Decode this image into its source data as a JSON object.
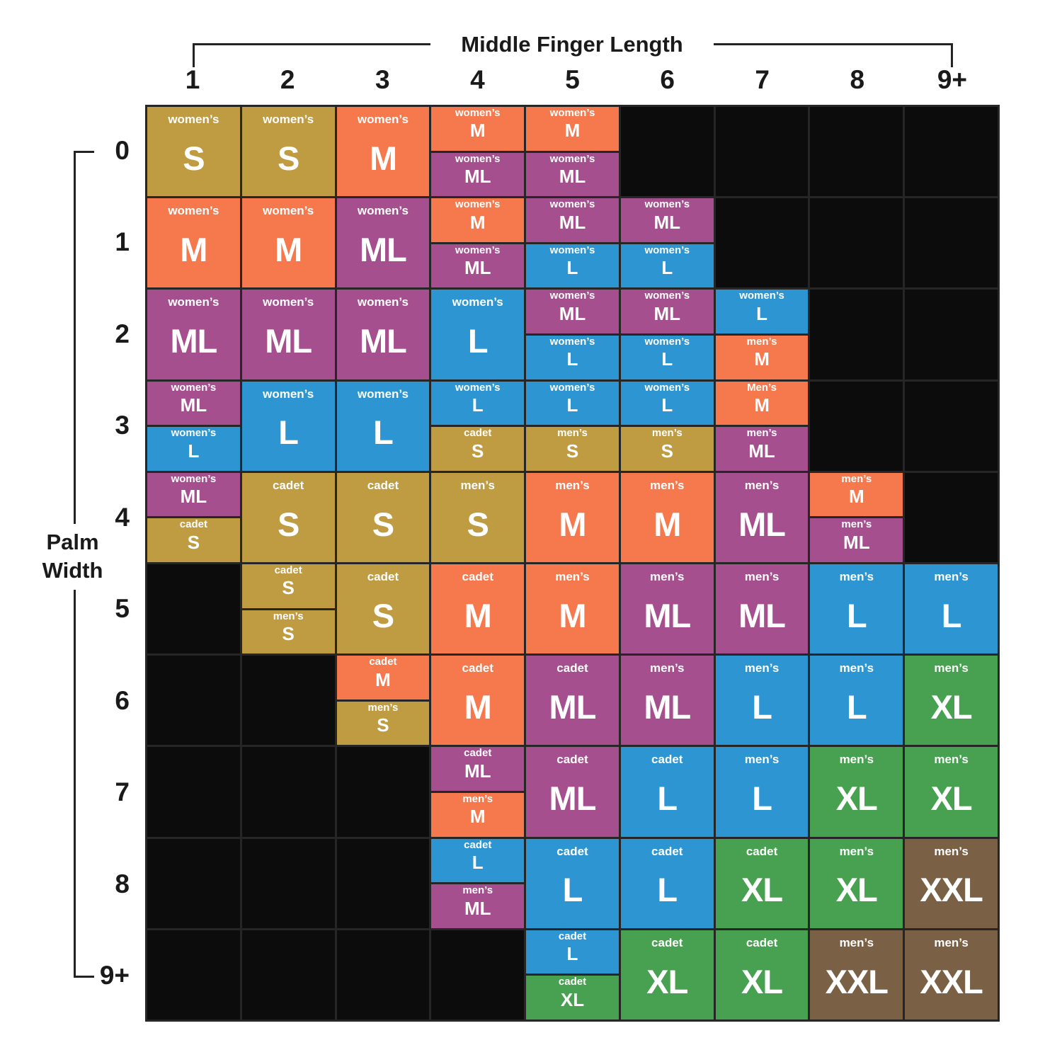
{
  "chart_data": {
    "type": "heatmap",
    "xlabel": "Middle Finger Length",
    "ylabel": "Palm Width",
    "x_ticks": [
      "1",
      "2",
      "3",
      "4",
      "5",
      "6",
      "7",
      "8",
      "9+"
    ],
    "y_ticks": [
      "0",
      "1",
      "2",
      "3",
      "4",
      "5",
      "6",
      "7",
      "8",
      "9+"
    ],
    "legend_position": "none",
    "grid": "on",
    "palette": {
      "S": "#bf9b42",
      "M": "#f5794d",
      "ML": "#a54f8e",
      "L": "#2e95d3",
      "XL": "#48a150",
      "XXL": "#7a6045",
      "empty": "#0c0c0c",
      "gridline": "#262626"
    },
    "rows": [
      {
        "palm_width": "0",
        "cells": [
          {
            "category": "women’s",
            "size": "S"
          },
          {
            "category": "women’s",
            "size": "S"
          },
          {
            "category": "women’s",
            "size": "M"
          },
          {
            "split": [
              {
                "category": "women’s",
                "size": "M"
              },
              {
                "category": "women’s",
                "size": "ML"
              }
            ]
          },
          {
            "split": [
              {
                "category": "women’s",
                "size": "M"
              },
              {
                "category": "women’s",
                "size": "ML"
              }
            ]
          },
          null,
          null,
          null,
          null
        ]
      },
      {
        "palm_width": "1",
        "cells": [
          {
            "category": "women’s",
            "size": "M"
          },
          {
            "category": "women’s",
            "size": "M"
          },
          {
            "category": "women’s",
            "size": "ML"
          },
          {
            "split": [
              {
                "category": "women’s",
                "size": "M"
              },
              {
                "category": "women’s",
                "size": "ML"
              }
            ]
          },
          {
            "split": [
              {
                "category": "women’s",
                "size": "ML"
              },
              {
                "category": "women’s",
                "size": "L"
              }
            ]
          },
          {
            "split": [
              {
                "category": "women’s",
                "size": "ML"
              },
              {
                "category": "women’s",
                "size": "L"
              }
            ]
          },
          null,
          null,
          null
        ]
      },
      {
        "palm_width": "2",
        "cells": [
          {
            "category": "women’s",
            "size": "ML"
          },
          {
            "category": "women’s",
            "size": "ML"
          },
          {
            "category": "women’s",
            "size": "ML"
          },
          {
            "category": "women’s",
            "size": "L"
          },
          {
            "split": [
              {
                "category": "women’s",
                "size": "ML"
              },
              {
                "category": "women’s",
                "size": "L"
              }
            ]
          },
          {
            "split": [
              {
                "category": "women’s",
                "size": "ML"
              },
              {
                "category": "women’s",
                "size": "L"
              }
            ]
          },
          {
            "split": [
              {
                "category": "women’s",
                "size": "L"
              },
              {
                "category": "men’s",
                "size": "M"
              }
            ]
          },
          null,
          null
        ]
      },
      {
        "palm_width": "3",
        "cells": [
          {
            "split": [
              {
                "category": "women’s",
                "size": "ML"
              },
              {
                "category": "women’s",
                "size": "L"
              }
            ]
          },
          {
            "category": "women’s",
            "size": "L"
          },
          {
            "category": "women’s",
            "size": "L"
          },
          {
            "split": [
              {
                "category": "women’s",
                "size": "L"
              },
              {
                "category": "cadet",
                "size": "S"
              }
            ]
          },
          {
            "split": [
              {
                "category": "women’s",
                "size": "L"
              },
              {
                "category": "men’s",
                "size": "S"
              }
            ]
          },
          {
            "split": [
              {
                "category": "women’s",
                "size": "L"
              },
              {
                "category": "men’s",
                "size": "S"
              }
            ]
          },
          {
            "split": [
              {
                "category": "Men’s",
                "size": "M"
              },
              {
                "category": "men’s",
                "size": "ML"
              }
            ]
          },
          null,
          null
        ]
      },
      {
        "palm_width": "4",
        "cells": [
          {
            "split": [
              {
                "category": "women’s",
                "size": "ML"
              },
              {
                "category": "cadet",
                "size": "S"
              }
            ]
          },
          {
            "category": "cadet",
            "size": "S"
          },
          {
            "category": "cadet",
            "size": "S"
          },
          {
            "category": "men’s",
            "size": "S"
          },
          {
            "category": "men’s",
            "size": "M"
          },
          {
            "category": "men’s",
            "size": "M"
          },
          {
            "category": "men’s",
            "size": "ML"
          },
          {
            "split": [
              {
                "category": "men’s",
                "size": "M"
              },
              {
                "category": "men’s",
                "size": "ML"
              }
            ]
          },
          null
        ]
      },
      {
        "palm_width": "5",
        "cells": [
          null,
          {
            "split": [
              {
                "category": "cadet",
                "size": "S"
              },
              {
                "category": "men’s",
                "size": "S"
              }
            ]
          },
          {
            "category": "cadet",
            "size": "S"
          },
          {
            "category": "cadet",
            "size": "M"
          },
          {
            "category": "men’s",
            "size": "M"
          },
          {
            "category": "men’s",
            "size": "ML"
          },
          {
            "category": "men’s",
            "size": "ML"
          },
          {
            "category": "men’s",
            "size": "L"
          },
          {
            "category": "men’s",
            "size": "L"
          }
        ]
      },
      {
        "palm_width": "6",
        "cells": [
          null,
          null,
          {
            "split": [
              {
                "category": "cadet",
                "size": "M"
              },
              {
                "category": "men’s",
                "size": "S"
              }
            ]
          },
          {
            "category": "cadet",
            "size": "M"
          },
          {
            "category": "cadet",
            "size": "ML"
          },
          {
            "category": "men’s",
            "size": "ML"
          },
          {
            "category": "men’s",
            "size": "L"
          },
          {
            "category": "men’s",
            "size": "L"
          },
          {
            "category": "men’s",
            "size": "XL"
          }
        ]
      },
      {
        "palm_width": "7",
        "cells": [
          null,
          null,
          null,
          {
            "split": [
              {
                "category": "cadet",
                "size": "ML"
              },
              {
                "category": "men’s",
                "size": "M"
              }
            ]
          },
          {
            "category": "cadet",
            "size": "ML"
          },
          {
            "category": "cadet",
            "size": "L"
          },
          {
            "category": "men’s",
            "size": "L"
          },
          {
            "category": "men’s",
            "size": "XL"
          },
          {
            "category": "men’s",
            "size": "XL"
          }
        ]
      },
      {
        "palm_width": "8",
        "cells": [
          null,
          null,
          null,
          {
            "split": [
              {
                "category": "cadet",
                "size": "L"
              },
              {
                "category": "men’s",
                "size": "ML"
              }
            ]
          },
          {
            "category": "cadet",
            "size": "L"
          },
          {
            "category": "cadet",
            "size": "L"
          },
          {
            "category": "cadet",
            "size": "XL"
          },
          {
            "category": "men’s",
            "size": "XL"
          },
          {
            "category": "men’s",
            "size": "XXL"
          }
        ]
      },
      {
        "palm_width": "9+",
        "cells": [
          null,
          null,
          null,
          null,
          {
            "split": [
              {
                "category": "cadet",
                "size": "L"
              },
              {
                "category": "cadet",
                "size": "XL"
              }
            ]
          },
          {
            "category": "cadet",
            "size": "XL"
          },
          {
            "category": "cadet",
            "size": "XL"
          },
          {
            "category": "men’s",
            "size": "XXL"
          },
          {
            "category": "men’s",
            "size": "XXL"
          }
        ]
      }
    ]
  }
}
